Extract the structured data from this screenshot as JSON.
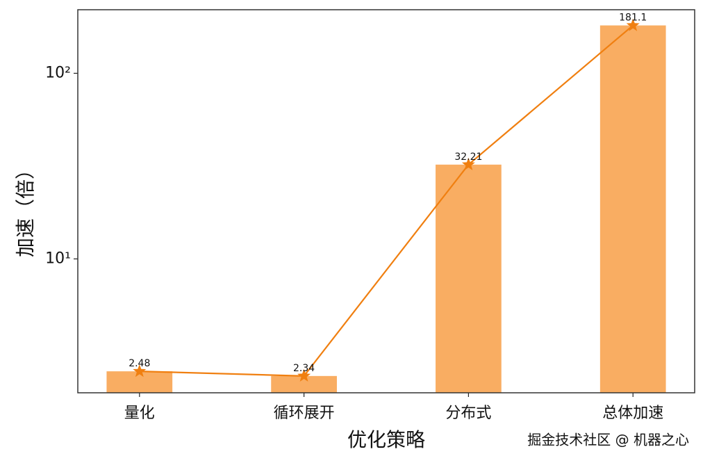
{
  "chart_data": {
    "type": "bar",
    "y_label": "加速（倍）",
    "x_label": "优化策略",
    "categories": [
      "量化",
      "循环展开",
      "分布式",
      "总体加速"
    ],
    "values": [
      2.48,
      2.34,
      32.21,
      181.1
    ],
    "color": "#f9ad62",
    "line_color": "#f07f10",
    "line_marker": "star",
    "log_scale": true,
    "ylim": [
      1.9,
      220
    ],
    "yticks": [
      {
        "value": 10,
        "label": "10¹"
      },
      {
        "value": 100,
        "label": "10²"
      }
    ],
    "watermark": "掘金技术社区 @ 机器之心"
  }
}
